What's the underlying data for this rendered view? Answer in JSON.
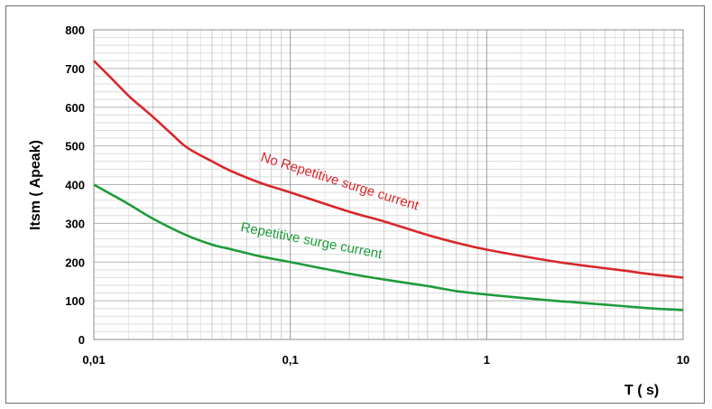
{
  "chart_data": {
    "type": "line",
    "x_scale": "log",
    "xlim": [
      0.01,
      10
    ],
    "ylim": [
      0,
      800
    ],
    "xlabel": "T ( s)",
    "ylabel": "Itsm ( Apeak)",
    "x_ticks": [
      {
        "value": 0.01,
        "label": "0,01"
      },
      {
        "value": 0.1,
        "label": "0,1"
      },
      {
        "value": 1,
        "label": "1"
      },
      {
        "value": 10,
        "label": "10"
      }
    ],
    "y_ticks": [
      {
        "value": 0,
        "label": "0"
      },
      {
        "value": 100,
        "label": "100"
      },
      {
        "value": 200,
        "label": "200"
      },
      {
        "value": 300,
        "label": "300"
      },
      {
        "value": 400,
        "label": "400"
      },
      {
        "value": 500,
        "label": "500"
      },
      {
        "value": 600,
        "label": "600"
      },
      {
        "value": 700,
        "label": "700"
      },
      {
        "value": 800,
        "label": "800"
      }
    ],
    "grid": true,
    "series": [
      {
        "name": "No Repetitive surge current",
        "color": "#d9262a",
        "x": [
          0.01,
          0.012,
          0.015,
          0.018,
          0.02,
          0.025,
          0.03,
          0.04,
          0.05,
          0.07,
          0.1,
          0.2,
          0.3,
          0.5,
          0.7,
          1,
          2,
          3,
          5,
          7,
          10
        ],
        "y": [
          720,
          680,
          630,
          595,
          575,
          530,
          495,
          460,
          435,
          405,
          380,
          330,
          305,
          270,
          250,
          232,
          205,
          192,
          178,
          168,
          160
        ]
      },
      {
        "name": "Repetitive surge current",
        "color": "#1e9b3a",
        "x": [
          0.01,
          0.015,
          0.02,
          0.03,
          0.04,
          0.05,
          0.07,
          0.1,
          0.2,
          0.3,
          0.5,
          0.7,
          1,
          2,
          3,
          5,
          7,
          10
        ],
        "y": [
          400,
          350,
          312,
          268,
          245,
          233,
          215,
          200,
          170,
          155,
          138,
          125,
          116,
          102,
          95,
          86,
          80,
          76
        ]
      }
    ],
    "annotations": [
      {
        "text": "No Repetitive surge current",
        "color": "#d9262a"
      },
      {
        "text": "Repetitive surge current",
        "color": "#1e9b3a"
      }
    ]
  }
}
